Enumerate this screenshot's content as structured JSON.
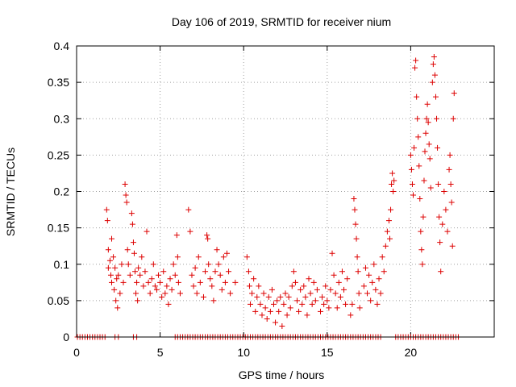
{
  "chart_data": {
    "type": "scatter",
    "title": "Day 106 of 2019, SRMTID for receiver nium",
    "xlabel": "GPS time / hours",
    "ylabel": "SRMTID / TECUs",
    "xlim": [
      0,
      25
    ],
    "ylim": [
      0,
      0.4
    ],
    "xticks": [
      0,
      5,
      10,
      15,
      20
    ],
    "xtick_labels": [
      "0",
      "5",
      "10",
      "15",
      "20"
    ],
    "yticks": [
      0,
      0.05,
      0.1,
      0.15,
      0.2,
      0.25,
      0.3,
      0.35,
      0.4
    ],
    "ytick_labels": [
      "0",
      "0.05",
      "0.1",
      "0.15",
      "0.2",
      "0.25",
      "0.3",
      "0.35",
      "0.4"
    ],
    "grid": true,
    "marker": "+",
    "colors": {
      "series": "#dd0000",
      "grid": "#a0a0a0",
      "axis": "#000000"
    },
    "series": [
      {
        "name": "SRMTID",
        "points": [
          [
            1.8,
            0.175
          ],
          [
            1.85,
            0.16
          ],
          [
            1.9,
            0.12
          ],
          [
            1.9,
            0.095
          ],
          [
            2.0,
            0.105
          ],
          [
            2.05,
            0.085
          ],
          [
            2.1,
            0.135
          ],
          [
            2.1,
            0.075
          ],
          [
            2.2,
            0.11
          ],
          [
            2.25,
            0.065
          ],
          [
            2.3,
            0.095
          ],
          [
            2.35,
            0.05
          ],
          [
            2.4,
            0.08
          ],
          [
            2.45,
            0.04
          ],
          [
            2.5,
            0.085
          ],
          [
            2.6,
            0.06
          ],
          [
            2.7,
            0.1
          ],
          [
            2.8,
            0.075
          ],
          [
            2.9,
            0.21
          ],
          [
            2.95,
            0.195
          ],
          [
            3.0,
            0.185
          ],
          [
            3.05,
            0.12
          ],
          [
            3.1,
            0.1
          ],
          [
            3.2,
            0.085
          ],
          [
            3.3,
            0.17
          ],
          [
            3.35,
            0.155
          ],
          [
            3.4,
            0.13
          ],
          [
            3.45,
            0.115
          ],
          [
            3.5,
            0.09
          ],
          [
            3.55,
            0.06
          ],
          [
            3.6,
            0.075
          ],
          [
            3.65,
            0.05
          ],
          [
            3.7,
            0.095
          ],
          [
            3.8,
            0.085
          ],
          [
            3.9,
            0.11
          ],
          [
            4.0,
            0.07
          ],
          [
            4.1,
            0.09
          ],
          [
            4.2,
            0.145
          ],
          [
            4.3,
            0.075
          ],
          [
            4.4,
            0.06
          ],
          [
            4.5,
            0.08
          ],
          [
            4.6,
            0.1
          ],
          [
            4.7,
            0.07
          ],
          [
            4.8,
            0.065
          ],
          [
            4.9,
            0.085
          ],
          [
            5.0,
            0.075
          ],
          [
            5.1,
            0.055
          ],
          [
            5.2,
            0.09
          ],
          [
            5.3,
            0.06
          ],
          [
            5.4,
            0.07
          ],
          [
            5.5,
            0.045
          ],
          [
            5.6,
            0.08
          ],
          [
            5.7,
            0.065
          ],
          [
            5.8,
            0.1
          ],
          [
            5.9,
            0.085
          ],
          [
            6.0,
            0.14
          ],
          [
            6.05,
            0.11
          ],
          [
            6.1,
            0.075
          ],
          [
            6.2,
            0.06
          ],
          [
            6.7,
            0.175
          ],
          [
            6.8,
            0.145
          ],
          [
            6.9,
            0.085
          ],
          [
            7.0,
            0.07
          ],
          [
            7.1,
            0.095
          ],
          [
            7.2,
            0.06
          ],
          [
            7.3,
            0.11
          ],
          [
            7.4,
            0.075
          ],
          [
            7.6,
            0.055
          ],
          [
            7.7,
            0.09
          ],
          [
            7.8,
            0.14
          ],
          [
            7.85,
            0.135
          ],
          [
            7.9,
            0.1
          ],
          [
            8.0,
            0.08
          ],
          [
            8.1,
            0.07
          ],
          [
            8.2,
            0.05
          ],
          [
            8.3,
            0.09
          ],
          [
            8.4,
            0.12
          ],
          [
            8.5,
            0.1
          ],
          [
            8.6,
            0.085
          ],
          [
            8.7,
            0.065
          ],
          [
            8.8,
            0.11
          ],
          [
            8.9,
            0.075
          ],
          [
            9.0,
            0.115
          ],
          [
            9.1,
            0.09
          ],
          [
            9.2,
            0.06
          ],
          [
            9.5,
            0.075
          ],
          [
            10.2,
            0.11
          ],
          [
            10.3,
            0.09
          ],
          [
            10.35,
            0.07
          ],
          [
            10.4,
            0.045
          ],
          [
            10.5,
            0.06
          ],
          [
            10.6,
            0.08
          ],
          [
            10.7,
            0.035
          ],
          [
            10.8,
            0.055
          ],
          [
            10.9,
            0.07
          ],
          [
            11.0,
            0.045
          ],
          [
            11.1,
            0.03
          ],
          [
            11.2,
            0.06
          ],
          [
            11.3,
            0.04
          ],
          [
            11.4,
            0.025
          ],
          [
            11.5,
            0.055
          ],
          [
            11.6,
            0.035
          ],
          [
            11.7,
            0.065
          ],
          [
            11.8,
            0.045
          ],
          [
            11.9,
            0.02
          ],
          [
            12.0,
            0.05
          ],
          [
            12.1,
            0.035
          ],
          [
            12.2,
            0.055
          ],
          [
            12.3,
            0.015
          ],
          [
            12.4,
            0.045
          ],
          [
            12.5,
            0.06
          ],
          [
            12.6,
            0.03
          ],
          [
            12.7,
            0.055
          ],
          [
            12.8,
            0.04
          ],
          [
            12.9,
            0.07
          ],
          [
            13.0,
            0.09
          ],
          [
            13.1,
            0.075
          ],
          [
            13.2,
            0.05
          ],
          [
            13.3,
            0.035
          ],
          [
            13.4,
            0.065
          ],
          [
            13.5,
            0.045
          ],
          [
            13.6,
            0.07
          ],
          [
            13.7,
            0.055
          ],
          [
            13.8,
            0.03
          ],
          [
            13.9,
            0.08
          ],
          [
            14.0,
            0.06
          ],
          [
            14.1,
            0.045
          ],
          [
            14.2,
            0.075
          ],
          [
            14.3,
            0.05
          ],
          [
            14.4,
            0.065
          ],
          [
            14.6,
            0.035
          ],
          [
            14.7,
            0.055
          ],
          [
            14.8,
            0.045
          ],
          [
            14.9,
            0.07
          ],
          [
            15.0,
            0.05
          ],
          [
            15.1,
            0.04
          ],
          [
            15.2,
            0.065
          ],
          [
            15.3,
            0.115
          ],
          [
            15.4,
            0.085
          ],
          [
            15.5,
            0.06
          ],
          [
            15.6,
            0.04
          ],
          [
            15.7,
            0.075
          ],
          [
            15.8,
            0.055
          ],
          [
            15.9,
            0.09
          ],
          [
            16.0,
            0.065
          ],
          [
            16.1,
            0.045
          ],
          [
            16.2,
            0.08
          ],
          [
            16.4,
            0.03
          ],
          [
            16.5,
            0.045
          ],
          [
            16.6,
            0.19
          ],
          [
            16.65,
            0.175
          ],
          [
            16.7,
            0.155
          ],
          [
            16.75,
            0.135
          ],
          [
            16.8,
            0.11
          ],
          [
            16.85,
            0.09
          ],
          [
            16.9,
            0.06
          ],
          [
            16.95,
            0.04
          ],
          [
            17.2,
            0.07
          ],
          [
            17.3,
            0.095
          ],
          [
            17.4,
            0.06
          ],
          [
            17.5,
            0.085
          ],
          [
            17.6,
            0.05
          ],
          [
            17.7,
            0.075
          ],
          [
            17.8,
            0.1
          ],
          [
            17.9,
            0.065
          ],
          [
            18.0,
            0.045
          ],
          [
            18.1,
            0.08
          ],
          [
            18.2,
            0.06
          ],
          [
            18.3,
            0.11
          ],
          [
            18.4,
            0.09
          ],
          [
            18.5,
            0.125
          ],
          [
            18.6,
            0.145
          ],
          [
            18.7,
            0.16
          ],
          [
            18.75,
            0.135
          ],
          [
            18.8,
            0.175
          ],
          [
            18.85,
            0.21
          ],
          [
            18.9,
            0.225
          ],
          [
            18.95,
            0.2
          ],
          [
            19.0,
            0.215
          ],
          [
            20.0,
            0.25
          ],
          [
            20.05,
            0.23
          ],
          [
            20.1,
            0.21
          ],
          [
            20.15,
            0.195
          ],
          [
            20.2,
            0.26
          ],
          [
            20.25,
            0.37
          ],
          [
            20.3,
            0.38
          ],
          [
            20.35,
            0.33
          ],
          [
            20.4,
            0.3
          ],
          [
            20.45,
            0.275
          ],
          [
            20.5,
            0.235
          ],
          [
            20.55,
            0.19
          ],
          [
            20.6,
            0.145
          ],
          [
            20.65,
            0.12
          ],
          [
            20.7,
            0.1
          ],
          [
            20.75,
            0.165
          ],
          [
            20.8,
            0.215
          ],
          [
            20.85,
            0.255
          ],
          [
            20.9,
            0.28
          ],
          [
            20.95,
            0.3
          ],
          [
            21.0,
            0.32
          ],
          [
            21.05,
            0.295
          ],
          [
            21.1,
            0.265
          ],
          [
            21.15,
            0.245
          ],
          [
            21.2,
            0.205
          ],
          [
            21.3,
            0.35
          ],
          [
            21.35,
            0.375
          ],
          [
            21.4,
            0.385
          ],
          [
            21.45,
            0.36
          ],
          [
            21.5,
            0.33
          ],
          [
            21.55,
            0.3
          ],
          [
            21.6,
            0.26
          ],
          [
            21.65,
            0.21
          ],
          [
            21.7,
            0.165
          ],
          [
            21.75,
            0.13
          ],
          [
            21.8,
            0.09
          ],
          [
            21.9,
            0.155
          ],
          [
            22.0,
            0.2
          ],
          [
            22.1,
            0.175
          ],
          [
            22.2,
            0.145
          ],
          [
            22.3,
            0.23
          ],
          [
            22.35,
            0.25
          ],
          [
            22.4,
            0.21
          ],
          [
            22.45,
            0.185
          ],
          [
            22.5,
            0.125
          ],
          [
            22.55,
            0.3
          ],
          [
            22.6,
            0.335
          ]
        ],
        "baseline_points": [
          0.05,
          0.2,
          0.35,
          0.5,
          0.65,
          0.8,
          0.95,
          1.1,
          1.25,
          1.4,
          1.55,
          1.7,
          2.3,
          2.5,
          3.4,
          3.6,
          5.9,
          6.05,
          6.2,
          6.35,
          6.5,
          6.65,
          6.8,
          6.95,
          7.1,
          7.25,
          7.4,
          7.55,
          7.7,
          7.85,
          8.0,
          8.15,
          8.3,
          8.45,
          8.6,
          8.75,
          8.9,
          9.05,
          9.2,
          9.35,
          9.5,
          9.65,
          9.8,
          9.95,
          10.1,
          10.25,
          10.4,
          10.55,
          10.7,
          10.85,
          11.0,
          11.15,
          11.3,
          11.45,
          11.6,
          11.75,
          11.9,
          12.05,
          12.2,
          12.35,
          12.5,
          12.65,
          12.8,
          12.95,
          13.1,
          13.25,
          13.4,
          13.55,
          13.7,
          13.85,
          14.0,
          14.15,
          14.3,
          14.45,
          14.6,
          14.75,
          14.9,
          15.05,
          15.2,
          15.35,
          15.5,
          15.65,
          15.8,
          15.95,
          16.1,
          16.25,
          16.4,
          16.55,
          16.7,
          16.85,
          17.0,
          17.15,
          17.3,
          17.45,
          17.6,
          17.75,
          17.9,
          18.05,
          18.2,
          19.1,
          19.25,
          19.4,
          19.55,
          19.7,
          19.85,
          20.0,
          20.15,
          20.3,
          20.45,
          20.6,
          20.75,
          20.9,
          21.05,
          21.2,
          21.35,
          21.5,
          21.65,
          21.8,
          21.95,
          22.1,
          22.25,
          22.4,
          22.55,
          22.7,
          22.85
        ]
      }
    ]
  }
}
